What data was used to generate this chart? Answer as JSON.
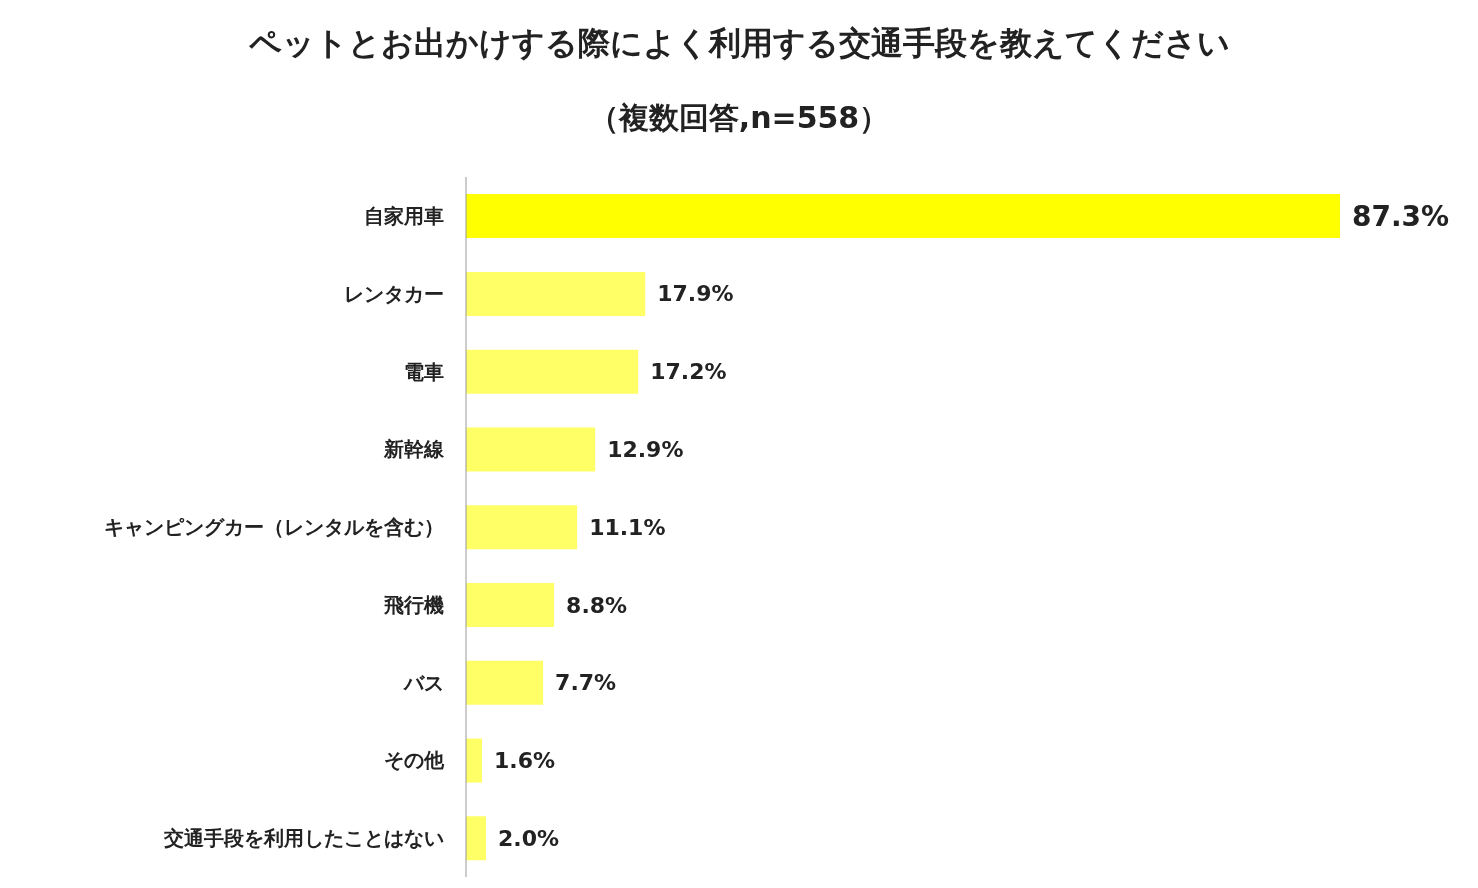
{
  "chart_data": {
    "type": "bar",
    "orientation": "horizontal",
    "title": "ペットとお出かけする際によく利用する交通手段を教えてください",
    "subtitle": "（複数回答,n=558）",
    "categories": [
      "自家用車",
      "レンタカー",
      "電車",
      "新幹線",
      "キャンピングカー（レンタルを含む）",
      "飛行機",
      "バス",
      "その他",
      "交通手段を利用したことはない"
    ],
    "values": [
      87.3,
      17.9,
      17.2,
      12.9,
      11.1,
      8.8,
      7.7,
      1.6,
      2.0
    ],
    "value_labels": [
      "87.3%",
      "17.9%",
      "17.2%",
      "12.9%",
      "11.1%",
      "8.8%",
      "7.7%",
      "1.6%",
      "2.0%"
    ],
    "colors": [
      "#ffff00",
      "#ffff66",
      "#ffff66",
      "#ffff66",
      "#ffff66",
      "#ffff66",
      "#ffff66",
      "#ffff66",
      "#ffff66"
    ],
    "grid": false,
    "legend": false
  }
}
